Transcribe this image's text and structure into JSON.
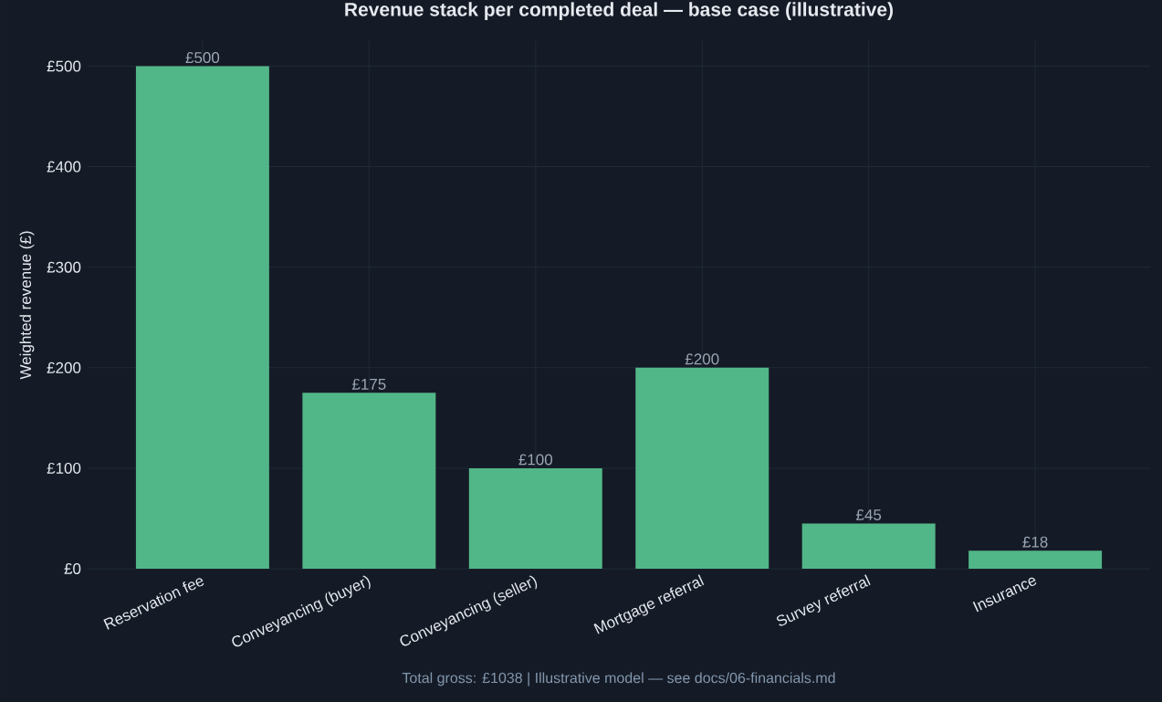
{
  "chart_data": {
    "type": "bar",
    "title": "Revenue stack per completed deal — base case (illustrative)",
    "ylabel": "Weighted revenue (£)",
    "categories": [
      "Reservation fee",
      "Conveyancing (buyer)",
      "Conveyancing (seller)",
      "Mortgage referral",
      "Survey referral",
      "Insurance"
    ],
    "values": [
      500,
      175,
      100,
      200,
      45,
      18
    ],
    "value_labels": [
      "£500",
      "£175",
      "£100",
      "£200",
      "£45",
      "£18"
    ],
    "color": "#52b788",
    "ylim": [
      0,
      525
    ],
    "yticks": [
      {
        "value": 0,
        "label": "£0"
      },
      {
        "value": 100,
        "label": "£100"
      },
      {
        "value": 200,
        "label": "£200"
      },
      {
        "value": 300,
        "label": "£300"
      },
      {
        "value": 400,
        "label": "£400"
      },
      {
        "value": 500,
        "label": "£500"
      }
    ],
    "grid": true,
    "annotations": [
      "Total gross: £1038 | Illustrative model — see docs/06-financials.md"
    ]
  }
}
